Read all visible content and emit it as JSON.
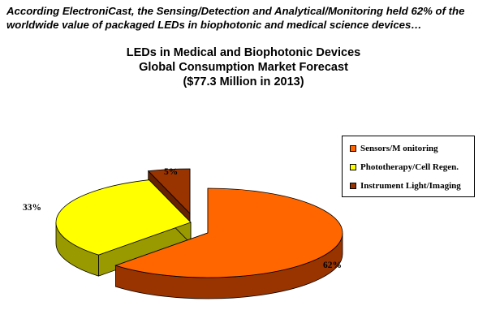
{
  "intro_text": "According ElectroniCast, the Sensing/Detection and Analytical/Monitoring held 62% of the worldwide value of packaged LEDs in biophotonic and medical science devices…",
  "chart_data": {
    "type": "pie",
    "title": "LEDs in Medical and Biophotonic Devices",
    "subtitle": "Global Consumption Market Forecast",
    "subtitle2": "($77.3 Million in 2013)",
    "legend_position": "right",
    "slices": [
      {
        "name": "Sensors/M onitoring",
        "value": 62,
        "label": "62%",
        "color": "#ff6600",
        "side_color": "#993300"
      },
      {
        "name": "Phototherapy/Cell Regen.",
        "value": 33,
        "label": "33%",
        "color": "#ffff00",
        "side_color": "#999900"
      },
      {
        "name": "Instrument Light/Imaging",
        "value": 5,
        "label": "5%",
        "color": "#993300",
        "side_color": "#662200"
      }
    ]
  }
}
